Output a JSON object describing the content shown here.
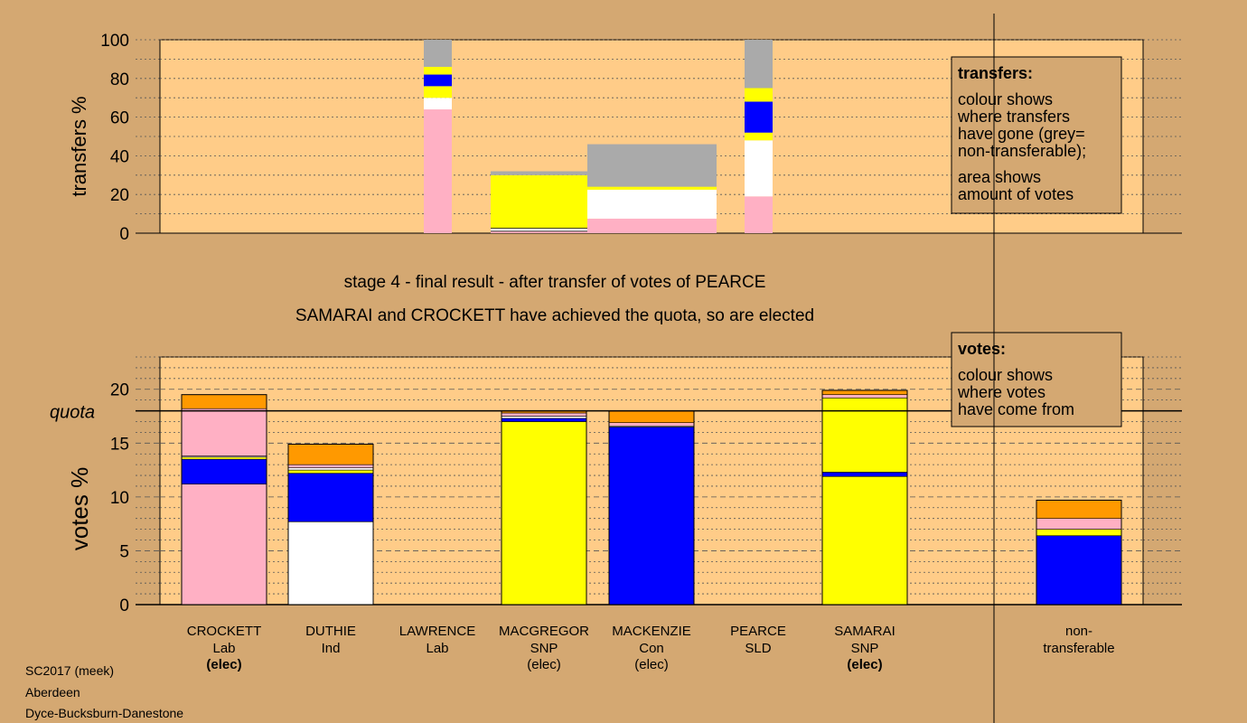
{
  "colors": {
    "background": "#d4a872",
    "plot_bg": "#ffcc88",
    "Lab": "#ffb0c4",
    "Ind": "#ffffff",
    "SNP": "#ffff00",
    "Con": "#0000ff",
    "SLD": "#ff9900",
    "nontransferable": "#aaaaaa"
  },
  "titles": {
    "stage": "stage 4 - final result - after transfer of votes of PEARCE",
    "elected": "SAMARAI and CROCKETT have achieved the quota, so are elected"
  },
  "footer": {
    "line1": "SC2017 (meek)",
    "line2": "Aberdeen",
    "line3": "Dyce-Bucksburn-Danestone"
  },
  "legend_transfers": {
    "title": "transfers:",
    "line1": "colour shows",
    "line2": "where transfers",
    "line3": "have gone (grey=",
    "line4": "non-transferable);",
    "line5": "area shows",
    "line6": "amount of votes"
  },
  "legend_votes": {
    "title": "votes:",
    "line1": "colour shows",
    "line2": "where votes",
    "line3": "have come from"
  },
  "chart_data": [
    {
      "type": "bar",
      "stacked": true,
      "ylabel": "transfers %",
      "ylim": [
        0,
        100
      ],
      "yticks": [
        "0",
        "20",
        "40",
        "60",
        "80",
        "100"
      ],
      "bars": [
        {
          "column": 3,
          "segments": [
            {
              "party": "Lab",
              "from": 0,
              "to": 64
            },
            {
              "party": "Ind",
              "from": 64,
              "to": 70
            },
            {
              "party": "SNP",
              "from": 70,
              "to": 76
            },
            {
              "party": "Con",
              "from": 76,
              "to": 82
            },
            {
              "party": "SNP",
              "from": 82,
              "to": 86
            },
            {
              "party": "nontransferable",
              "from": 86,
              "to": 100
            }
          ]
        },
        {
          "column": 4,
          "wide": true,
          "segments": [
            {
              "party": "Lab",
              "from": 0,
              "to": 1
            },
            {
              "party": "Ind",
              "from": 1,
              "to": 2.5
            },
            {
              "party": "SNP",
              "from": 2.5,
              "to": 30
            },
            {
              "party": "nontransferable",
              "from": 30,
              "to": 32
            }
          ]
        },
        {
          "column": 5,
          "wide": true,
          "segments": [
            {
              "party": "Lab",
              "from": 0,
              "to": 7.5
            },
            {
              "party": "Ind",
              "from": 7.5,
              "to": 22.5
            },
            {
              "party": "SNP",
              "from": 22.5,
              "to": 24
            },
            {
              "party": "nontransferable",
              "from": 24,
              "to": 46
            }
          ]
        },
        {
          "column": 6,
          "segments": [
            {
              "party": "Lab",
              "from": 0,
              "to": 19
            },
            {
              "party": "Ind",
              "from": 19,
              "to": 48
            },
            {
              "party": "SNP",
              "from": 48,
              "to": 52
            },
            {
              "party": "Con",
              "from": 52,
              "to": 68
            },
            {
              "party": "SNP",
              "from": 68,
              "to": 75
            },
            {
              "party": "nontransferable",
              "from": 75,
              "to": 100
            }
          ]
        }
      ]
    },
    {
      "type": "bar",
      "stacked": true,
      "ylabel": "votes %",
      "ylim": [
        0,
        23
      ],
      "yticks": [
        "0",
        "5",
        "10",
        "15",
        "20"
      ],
      "quota": 18,
      "quota_label": "quota",
      "categories": [
        {
          "name": "CROCKETT",
          "party": "Lab",
          "status": "(elec)",
          "status_bold": true
        },
        {
          "name": "DUTHIE",
          "party": "Ind",
          "status": "",
          "status_bold": false
        },
        {
          "name": "LAWRENCE",
          "party": "Lab",
          "status": "",
          "status_bold": false
        },
        {
          "name": "MACGREGOR",
          "party": "SNP",
          "status": "(elec)",
          "status_bold": false
        },
        {
          "name": "MACKENZIE",
          "party": "Con",
          "status": "(elec)",
          "status_bold": false
        },
        {
          "name": "PEARCE",
          "party": "SLD",
          "status": "",
          "status_bold": false
        },
        {
          "name": "SAMARAI",
          "party": "SNP",
          "status": "(elec)",
          "status_bold": true
        },
        {
          "name": "non-",
          "party": "transferable",
          "status": "",
          "status_bold": false
        }
      ],
      "stacks": [
        [
          {
            "party": "Lab",
            "v": 11.2
          },
          {
            "party": "Con",
            "v": 2.3
          },
          {
            "party": "SNP",
            "v": 0.2
          },
          {
            "party": "Ind",
            "v": 0.1
          },
          {
            "party": "Lab",
            "v": 4.4
          },
          {
            "party": "SLD",
            "v": 1.3
          }
        ],
        [
          {
            "party": "Ind",
            "v": 7.7
          },
          {
            "party": "Con",
            "v": 4.5
          },
          {
            "party": "SNP",
            "v": 0.3
          },
          {
            "party": "Ind",
            "v": 0.2
          },
          {
            "party": "Lab",
            "v": 0.3
          },
          {
            "party": "SLD",
            "v": 1.9
          }
        ],
        [],
        [
          {
            "party": "SNP",
            "v": 17.0
          },
          {
            "party": "Con",
            "v": 0.3
          },
          {
            "party": "Ind",
            "v": 0.2
          },
          {
            "party": "Lab",
            "v": 0.3
          },
          {
            "party": "SLD",
            "v": 0.2
          }
        ],
        [
          {
            "party": "Con",
            "v": 16.5
          },
          {
            "party": "Ind",
            "v": 0.1
          },
          {
            "party": "Lab",
            "v": 0.3
          },
          {
            "party": "SLD",
            "v": 1.1
          }
        ],
        [],
        [
          {
            "party": "SNP",
            "v": 11.9
          },
          {
            "party": "Con",
            "v": 0.4
          },
          {
            "party": "SNP",
            "v": 6.9
          },
          {
            "party": "Lab",
            "v": 0.3
          },
          {
            "party": "SLD",
            "v": 0.4
          }
        ],
        [
          {
            "party": "Con",
            "v": 6.4
          },
          {
            "party": "SNP",
            "v": 0.6
          },
          {
            "party": "Lab",
            "v": 1.0
          },
          {
            "party": "SLD",
            "v": 1.7
          }
        ]
      ]
    }
  ]
}
